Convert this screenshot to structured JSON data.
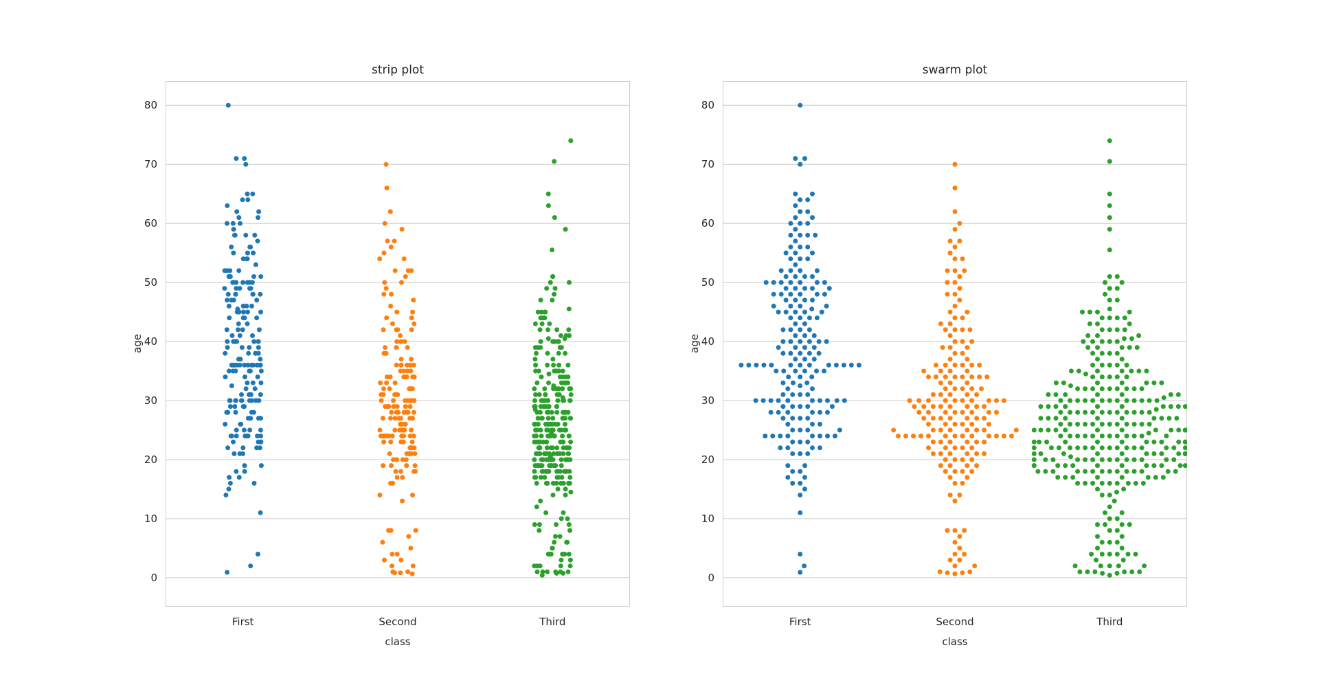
{
  "figure": {
    "background": "#ffffff",
    "grid_color": "#cccccc",
    "text_color": "#262626"
  },
  "chart_data": [
    {
      "type": "strip",
      "title": "strip plot",
      "xlabel": "class",
      "ylabel": "age",
      "categories": [
        "First",
        "Second",
        "Third"
      ],
      "yticks": [
        0,
        10,
        20,
        30,
        40,
        50,
        60,
        70,
        80
      ],
      "ylim": [
        -4.9,
        84.1
      ],
      "grid": true,
      "legend": "none",
      "series": [
        {
          "name": "First",
          "color": "#1f77b4",
          "age_counts": [
            [
              0.92,
              1
            ],
            [
              2,
              1
            ],
            [
              4,
              1
            ],
            [
              11,
              1
            ],
            [
              14,
              1
            ],
            [
              15,
              1
            ],
            [
              16,
              2
            ],
            [
              17,
              2
            ],
            [
              18,
              2
            ],
            [
              19,
              2
            ],
            [
              21,
              3
            ],
            [
              22,
              4
            ],
            [
              23,
              3
            ],
            [
              24,
              8
            ],
            [
              25,
              4
            ],
            [
              26,
              3
            ],
            [
              27,
              4
            ],
            [
              28,
              6
            ],
            [
              29,
              5
            ],
            [
              30,
              10
            ],
            [
              31,
              4
            ],
            [
              32,
              2
            ],
            [
              32.5,
              1
            ],
            [
              33,
              3
            ],
            [
              34,
              3
            ],
            [
              35,
              6
            ],
            [
              36,
              13
            ],
            [
              37,
              3
            ],
            [
              38,
              5
            ],
            [
              39,
              4
            ],
            [
              40,
              6
            ],
            [
              41,
              3
            ],
            [
              42,
              4
            ],
            [
              43,
              2
            ],
            [
              44,
              4
            ],
            [
              45,
              5
            ],
            [
              45.5,
              1
            ],
            [
              46,
              4
            ],
            [
              47,
              4
            ],
            [
              48,
              6
            ],
            [
              49,
              5
            ],
            [
              50,
              7
            ],
            [
              51,
              4
            ],
            [
              52,
              4
            ],
            [
              53,
              1
            ],
            [
              54,
              3
            ],
            [
              55,
              3
            ],
            [
              56,
              3
            ],
            [
              57,
              1
            ],
            [
              58,
              4
            ],
            [
              59,
              1
            ],
            [
              60,
              3
            ],
            [
              61,
              2
            ],
            [
              62,
              2
            ],
            [
              63,
              1
            ],
            [
              64,
              2
            ],
            [
              65,
              2
            ],
            [
              70,
              1
            ],
            [
              71,
              2
            ],
            [
              80,
              1
            ]
          ]
        },
        {
          "name": "Second",
          "color": "#ff7f0e",
          "age_counts": [
            [
              0.67,
              1
            ],
            [
              0.83,
              2
            ],
            [
              1,
              2
            ],
            [
              2,
              2
            ],
            [
              3,
              2
            ],
            [
              4,
              2
            ],
            [
              5,
              1
            ],
            [
              6,
              1
            ],
            [
              7,
              1
            ],
            [
              8,
              3
            ],
            [
              13,
              1
            ],
            [
              14,
              2
            ],
            [
              16,
              2
            ],
            [
              17,
              2
            ],
            [
              18,
              4
            ],
            [
              19,
              4
            ],
            [
              20,
              4
            ],
            [
              21,
              6
            ],
            [
              22,
              5
            ],
            [
              23,
              6
            ],
            [
              24,
              13
            ],
            [
              25,
              8
            ],
            [
              26,
              6
            ],
            [
              27,
              7
            ],
            [
              28,
              8
            ],
            [
              29,
              8
            ],
            [
              30,
              10
            ],
            [
              31,
              5
            ],
            [
              32,
              5
            ],
            [
              33,
              3
            ],
            [
              34,
              8
            ],
            [
              35,
              4
            ],
            [
              36,
              6
            ],
            [
              37,
              2
            ],
            [
              38,
              2
            ],
            [
              39,
              3
            ],
            [
              40,
              3
            ],
            [
              41,
              1
            ],
            [
              42,
              4
            ],
            [
              43,
              2
            ],
            [
              44,
              2
            ],
            [
              45,
              2
            ],
            [
              46,
              1
            ],
            [
              47,
              1
            ],
            [
              48,
              2
            ],
            [
              49,
              1
            ],
            [
              50,
              2
            ],
            [
              51,
              1
            ],
            [
              52,
              3
            ],
            [
              54,
              2
            ],
            [
              55,
              1
            ],
            [
              56,
              1
            ],
            [
              57,
              2
            ],
            [
              59,
              1
            ],
            [
              60,
              1
            ],
            [
              62,
              1
            ],
            [
              66,
              1
            ],
            [
              70,
              1
            ]
          ]
        },
        {
          "name": "Third",
          "color": "#2ca02c",
          "age_counts": [
            [
              0.42,
              1
            ],
            [
              0.75,
              2
            ],
            [
              1,
              6
            ],
            [
              2,
              5
            ],
            [
              3,
              2
            ],
            [
              4,
              6
            ],
            [
              5,
              2
            ],
            [
              6,
              3
            ],
            [
              7,
              2
            ],
            [
              8,
              2
            ],
            [
              9,
              4
            ],
            [
              10,
              2
            ],
            [
              11,
              2
            ],
            [
              12,
              1
            ],
            [
              13,
              1
            ],
            [
              14,
              2
            ],
            [
              14.5,
              1
            ],
            [
              15,
              2
            ],
            [
              16,
              9
            ],
            [
              17,
              8
            ],
            [
              18,
              14
            ],
            [
              19,
              12
            ],
            [
              20,
              14
            ],
            [
              20.5,
              1
            ],
            [
              21,
              16
            ],
            [
              22,
              16
            ],
            [
              23,
              12
            ],
            [
              24,
              12
            ],
            [
              24.5,
              1
            ],
            [
              25,
              14
            ],
            [
              26,
              12
            ],
            [
              27,
              10
            ],
            [
              28,
              12
            ],
            [
              28.5,
              1
            ],
            [
              29,
              10
            ],
            [
              30,
              13
            ],
            [
              30.5,
              1
            ],
            [
              31,
              7
            ],
            [
              32,
              9
            ],
            [
              32.5,
              1
            ],
            [
              33,
              7
            ],
            [
              34,
              5
            ],
            [
              34.5,
              1
            ],
            [
              35,
              7
            ],
            [
              36,
              5
            ],
            [
              37,
              2
            ],
            [
              38,
              4
            ],
            [
              39,
              5
            ],
            [
              40,
              5
            ],
            [
              40.5,
              2
            ],
            [
              41,
              3
            ],
            [
              42,
              4
            ],
            [
              43,
              3
            ],
            [
              44,
              4
            ],
            [
              45,
              4
            ],
            [
              45.5,
              1
            ],
            [
              47,
              2
            ],
            [
              48,
              1
            ],
            [
              49,
              2
            ],
            [
              50,
              2
            ],
            [
              51,
              2
            ],
            [
              55.5,
              1
            ],
            [
              59,
              1
            ],
            [
              61,
              1
            ],
            [
              63,
              1
            ],
            [
              65,
              1
            ],
            [
              70.5,
              1
            ],
            [
              74,
              1
            ]
          ]
        }
      ]
    },
    {
      "type": "swarm",
      "title": "swarm plot",
      "xlabel": "class",
      "ylabel": "age",
      "categories": [
        "First",
        "Second",
        "Third"
      ],
      "yticks": [
        0,
        10,
        20,
        30,
        40,
        50,
        60,
        70,
        80
      ],
      "ylim": [
        -4.9,
        84.1
      ],
      "grid": true,
      "legend": "none",
      "series": "same_as_first_chart"
    }
  ]
}
